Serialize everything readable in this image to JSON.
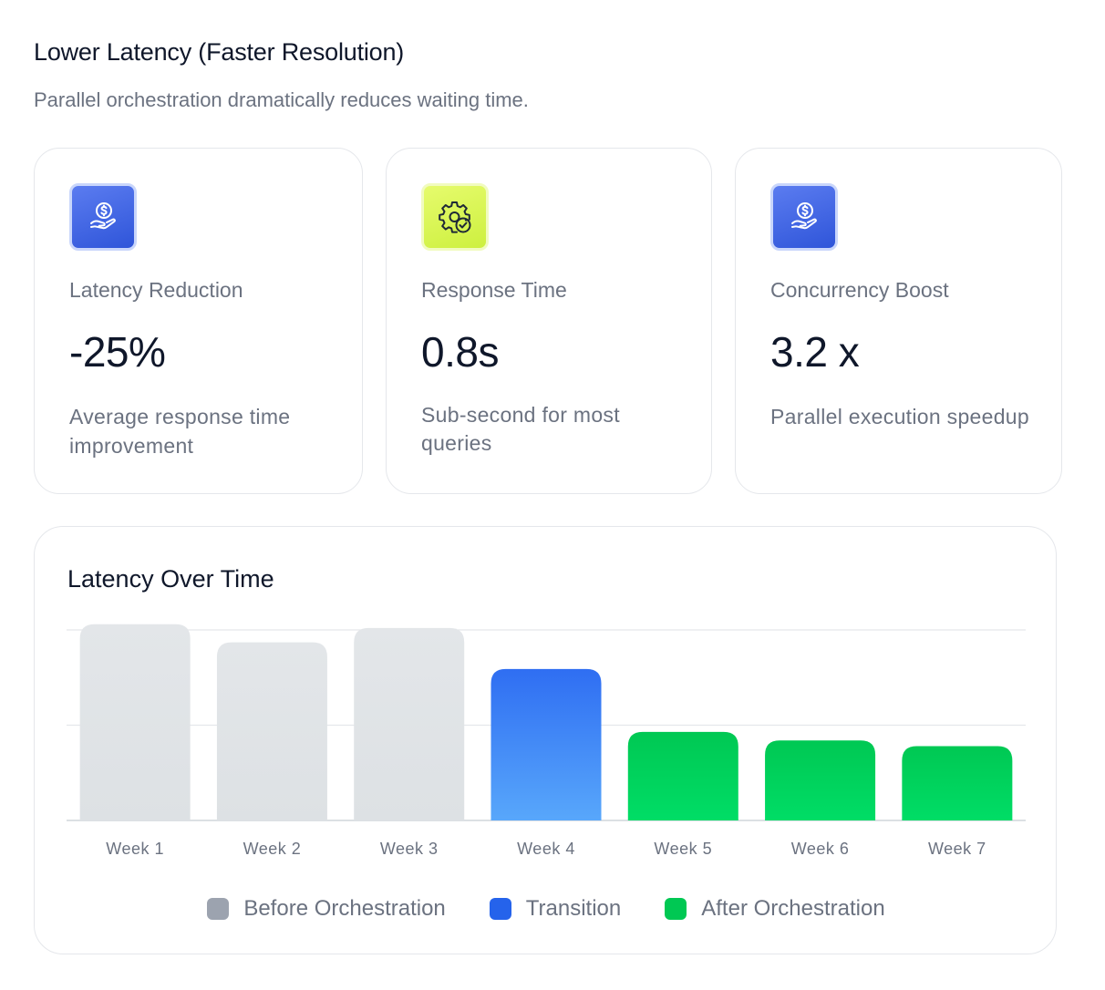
{
  "header": {
    "title": "Lower Latency (Faster Resolution)",
    "subtitle": "Parallel orchestration dramatically reduces waiting time."
  },
  "cards": [
    {
      "icon": "dollar-hand-icon",
      "icon_color": "#3b5bdb",
      "label": "Latency Reduction",
      "value": "-25%",
      "description": "Average response time improvement"
    },
    {
      "icon": "gear-check-icon",
      "icon_color": "#d4f542",
      "label": "Response Time",
      "value": "0.8s",
      "description": "Sub-second for most queries"
    },
    {
      "icon": "dollar-hand-icon",
      "icon_color": "#3b5bdb",
      "label": "Concurrency Boost",
      "value": "3.2 x",
      "description": "Parallel execution speedup"
    }
  ],
  "chart": {
    "title": "Latency Over Time"
  },
  "chart_data": {
    "type": "bar",
    "categories": [
      "Week 1",
      "Week 2",
      "Week 3",
      "Week 4",
      "Week 5",
      "Week 6",
      "Week 7"
    ],
    "values": [
      2.06,
      1.87,
      2.02,
      1.59,
      0.93,
      0.84,
      0.78
    ],
    "groups": [
      "Before Orchestration",
      "Before Orchestration",
      "Before Orchestration",
      "Transition",
      "After Orchestration",
      "After Orchestration",
      "After Orchestration"
    ],
    "ylim": [
      0,
      2.0
    ],
    "gridlines": [
      0,
      1,
      2
    ],
    "legend": [
      {
        "name": "Before Orchestration",
        "color": "#9ca3af"
      },
      {
        "name": "Transition",
        "color": "#2563eb"
      },
      {
        "name": "After Orchestration",
        "color": "#00c853"
      }
    ],
    "legend_position": "bottom-center",
    "grid": true
  }
}
